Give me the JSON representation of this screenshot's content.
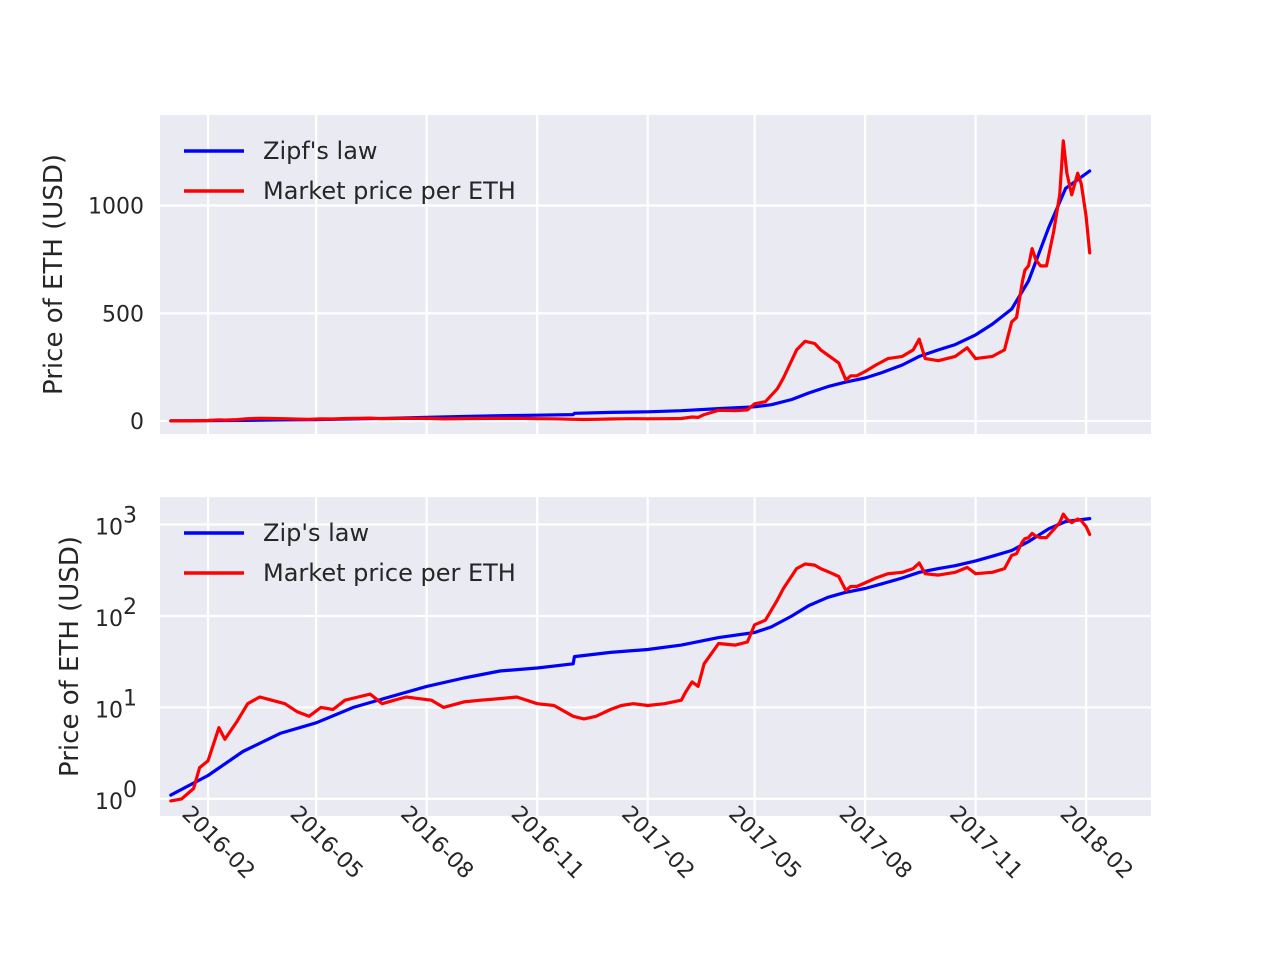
{
  "chart_data": [
    {
      "type": "line",
      "title": "",
      "ylabel": "Price of ETH (USD)",
      "xlabel": "",
      "yscale": "linear",
      "ylim": [
        -60,
        1420
      ],
      "xlim": [
        "2015-12-23",
        "2018-03-27"
      ],
      "yticks": [
        0,
        500,
        1000
      ],
      "ytick_labels": [
        "0",
        "500",
        "1000"
      ],
      "xticks": [
        "2016-02-01",
        "2016-05-01",
        "2016-08-01",
        "2016-11-01",
        "2017-02-01",
        "2017-05-01",
        "2017-08-01",
        "2017-11-01",
        "2018-02-01"
      ],
      "xtick_labels": [],
      "grid": true,
      "legend": "top-left",
      "series": [
        {
          "name": "Zipf's law",
          "color": "#0000ff",
          "x": [
            "2016-01-01",
            "2016-02-01",
            "2016-03-01",
            "2016-04-01",
            "2016-05-01",
            "2016-06-01",
            "2016-07-01",
            "2016-08-01",
            "2016-09-01",
            "2016-10-01",
            "2016-11-01",
            "2016-12-01",
            "2016-12-02",
            "2017-01-01",
            "2017-02-01",
            "2017-03-01",
            "2017-04-01",
            "2017-05-01",
            "2017-05-15",
            "2017-06-01",
            "2017-06-15",
            "2017-07-01",
            "2017-07-15",
            "2017-08-01",
            "2017-08-15",
            "2017-09-01",
            "2017-09-15",
            "2017-10-01",
            "2017-10-15",
            "2017-11-01",
            "2017-11-15",
            "2017-12-01",
            "2017-12-15",
            "2018-01-01",
            "2018-01-15",
            "2018-02-04"
          ],
          "values": [
            1.1,
            1.8,
            3.3,
            5.2,
            6.8,
            10,
            13,
            17,
            21,
            25,
            27,
            30,
            36,
            40,
            43,
            48,
            58,
            66,
            76,
            100,
            130,
            160,
            180,
            200,
            225,
            260,
            300,
            330,
            355,
            400,
            450,
            520,
            650,
            900,
            1080,
            1160
          ]
        },
        {
          "name": "Market price per ETH",
          "color": "#ff0000",
          "x": [
            "2016-01-01",
            "2016-01-10",
            "2016-01-20",
            "2016-01-25",
            "2016-02-01",
            "2016-02-10",
            "2016-02-15",
            "2016-02-25",
            "2016-03-05",
            "2016-03-15",
            "2016-03-25",
            "2016-04-05",
            "2016-04-15",
            "2016-04-25",
            "2016-05-05",
            "2016-05-15",
            "2016-05-25",
            "2016-06-05",
            "2016-06-15",
            "2016-06-25",
            "2016-07-05",
            "2016-07-15",
            "2016-07-25",
            "2016-08-05",
            "2016-08-15",
            "2016-09-01",
            "2016-09-15",
            "2016-10-01",
            "2016-10-15",
            "2016-11-01",
            "2016-11-15",
            "2016-12-01",
            "2016-12-10",
            "2016-12-20",
            "2017-01-01",
            "2017-01-10",
            "2017-01-20",
            "2017-02-01",
            "2017-02-15",
            "2017-03-01",
            "2017-03-05",
            "2017-03-10",
            "2017-03-15",
            "2017-03-20",
            "2017-04-01",
            "2017-04-15",
            "2017-04-25",
            "2017-05-01",
            "2017-05-10",
            "2017-05-20",
            "2017-05-25",
            "2017-06-05",
            "2017-06-12",
            "2017-06-20",
            "2017-06-25",
            "2017-07-05",
            "2017-07-10",
            "2017-07-16",
            "2017-07-20",
            "2017-07-25",
            "2017-08-01",
            "2017-08-10",
            "2017-08-20",
            "2017-09-01",
            "2017-09-10",
            "2017-09-15",
            "2017-09-20",
            "2017-10-01",
            "2017-10-15",
            "2017-10-25",
            "2017-11-01",
            "2017-11-15",
            "2017-11-25",
            "2017-12-01",
            "2017-12-05",
            "2017-12-10",
            "2017-12-12",
            "2017-12-15",
            "2017-12-18",
            "2017-12-21",
            "2017-12-25",
            "2017-12-30",
            "2018-01-05",
            "2018-01-10",
            "2018-01-13",
            "2018-01-16",
            "2018-01-20",
            "2018-01-25",
            "2018-01-28",
            "2018-02-01",
            "2018-02-04"
          ],
          "values": [
            0.95,
            1.0,
            1.3,
            2.2,
            2.6,
            6.0,
            4.5,
            7.0,
            11,
            13,
            12,
            11,
            9,
            8,
            10,
            9.5,
            12,
            13,
            14,
            11,
            12,
            13,
            12.5,
            12,
            10,
            11.5,
            12,
            12.5,
            13,
            11,
            10.5,
            8,
            7.5,
            8,
            9.5,
            10.5,
            11,
            10.5,
            11,
            12,
            15,
            19,
            17,
            30,
            50,
            48,
            52,
            80,
            90,
            150,
            200,
            330,
            370,
            360,
            330,
            290,
            270,
            190,
            210,
            210,
            230,
            260,
            290,
            300,
            330,
            380,
            290,
            280,
            300,
            340,
            290,
            300,
            330,
            460,
            480,
            650,
            700,
            720,
            800,
            750,
            720,
            720,
            880,
            1050,
            1300,
            1150,
            1050,
            1150,
            1100,
            950,
            780
          ]
        }
      ]
    },
    {
      "type": "line",
      "title": "",
      "ylabel": "Price of ETH (USD)",
      "xlabel": "",
      "yscale": "log",
      "ylim": [
        0.65,
        2000
      ],
      "xlim": [
        "2015-12-23",
        "2018-03-27"
      ],
      "yticks": [
        1,
        10,
        100,
        1000
      ],
      "ytick_labels": [
        {
          "base": "10",
          "exp": "0"
        },
        {
          "base": "10",
          "exp": "1"
        },
        {
          "base": "10",
          "exp": "2"
        },
        {
          "base": "10",
          "exp": "3"
        }
      ],
      "xticks": [
        "2016-02-01",
        "2016-05-01",
        "2016-08-01",
        "2016-11-01",
        "2017-02-01",
        "2017-05-01",
        "2017-08-01",
        "2017-11-01",
        "2018-02-01"
      ],
      "xtick_labels": [
        "2016-02",
        "2016-05",
        "2016-08",
        "2016-11",
        "2017-02",
        "2017-05",
        "2017-08",
        "2017-11",
        "2018-02"
      ],
      "grid": true,
      "legend": "top-left",
      "series": [
        {
          "name": "Zip's law",
          "color": "#0000ff",
          "x": [
            "2016-01-01",
            "2016-02-01",
            "2016-03-01",
            "2016-04-01",
            "2016-05-01",
            "2016-06-01",
            "2016-07-01",
            "2016-08-01",
            "2016-09-01",
            "2016-10-01",
            "2016-11-01",
            "2016-12-01",
            "2016-12-02",
            "2017-01-01",
            "2017-02-01",
            "2017-03-01",
            "2017-04-01",
            "2017-05-01",
            "2017-05-15",
            "2017-06-01",
            "2017-06-15",
            "2017-07-01",
            "2017-07-15",
            "2017-08-01",
            "2017-08-15",
            "2017-09-01",
            "2017-09-15",
            "2017-10-01",
            "2017-10-15",
            "2017-11-01",
            "2017-11-15",
            "2017-12-01",
            "2017-12-15",
            "2018-01-01",
            "2018-01-15",
            "2018-02-04"
          ],
          "values": [
            1.1,
            1.8,
            3.3,
            5.2,
            6.8,
            10,
            13,
            17,
            21,
            25,
            27,
            30,
            36,
            40,
            43,
            48,
            58,
            66,
            76,
            100,
            130,
            160,
            180,
            200,
            225,
            260,
            300,
            330,
            355,
            400,
            450,
            520,
            650,
            900,
            1080,
            1160
          ]
        },
        {
          "name": "Market price per ETH",
          "color": "#ff0000",
          "x": [
            "2016-01-01",
            "2016-01-10",
            "2016-01-20",
            "2016-01-25",
            "2016-02-01",
            "2016-02-10",
            "2016-02-15",
            "2016-02-25",
            "2016-03-05",
            "2016-03-15",
            "2016-03-25",
            "2016-04-05",
            "2016-04-15",
            "2016-04-25",
            "2016-05-05",
            "2016-05-15",
            "2016-05-25",
            "2016-06-05",
            "2016-06-15",
            "2016-06-25",
            "2016-07-05",
            "2016-07-15",
            "2016-07-25",
            "2016-08-05",
            "2016-08-15",
            "2016-09-01",
            "2016-09-15",
            "2016-10-01",
            "2016-10-15",
            "2016-11-01",
            "2016-11-15",
            "2016-12-01",
            "2016-12-10",
            "2016-12-20",
            "2017-01-01",
            "2017-01-10",
            "2017-01-20",
            "2017-02-01",
            "2017-02-15",
            "2017-03-01",
            "2017-03-05",
            "2017-03-10",
            "2017-03-15",
            "2017-03-20",
            "2017-04-01",
            "2017-04-15",
            "2017-04-25",
            "2017-05-01",
            "2017-05-10",
            "2017-05-20",
            "2017-05-25",
            "2017-06-05",
            "2017-06-12",
            "2017-06-20",
            "2017-06-25",
            "2017-07-05",
            "2017-07-10",
            "2017-07-16",
            "2017-07-20",
            "2017-07-25",
            "2017-08-01",
            "2017-08-10",
            "2017-08-20",
            "2017-09-01",
            "2017-09-10",
            "2017-09-15",
            "2017-09-20",
            "2017-10-01",
            "2017-10-15",
            "2017-10-25",
            "2017-11-01",
            "2017-11-15",
            "2017-11-25",
            "2017-12-01",
            "2017-12-05",
            "2017-12-10",
            "2017-12-12",
            "2017-12-15",
            "2017-12-18",
            "2017-12-21",
            "2017-12-25",
            "2017-12-30",
            "2018-01-05",
            "2018-01-10",
            "2018-01-13",
            "2018-01-16",
            "2018-01-20",
            "2018-01-25",
            "2018-01-28",
            "2018-02-01",
            "2018-02-04"
          ],
          "values": [
            0.95,
            1.0,
            1.3,
            2.2,
            2.6,
            6.0,
            4.5,
            7.0,
            11,
            13,
            12,
            11,
            9,
            8,
            10,
            9.5,
            12,
            13,
            14,
            11,
            12,
            13,
            12.5,
            12,
            10,
            11.5,
            12,
            12.5,
            13,
            11,
            10.5,
            8,
            7.5,
            8,
            9.5,
            10.5,
            11,
            10.5,
            11,
            12,
            15,
            19,
            17,
            30,
            50,
            48,
            52,
            80,
            90,
            150,
            200,
            330,
            370,
            360,
            330,
            290,
            270,
            190,
            210,
            210,
            230,
            260,
            290,
            300,
            330,
            380,
            290,
            280,
            300,
            340,
            290,
            300,
            330,
            460,
            480,
            650,
            700,
            720,
            800,
            750,
            720,
            720,
            880,
            1050,
            1300,
            1150,
            1050,
            1150,
            1100,
            950,
            780
          ]
        }
      ]
    }
  ]
}
